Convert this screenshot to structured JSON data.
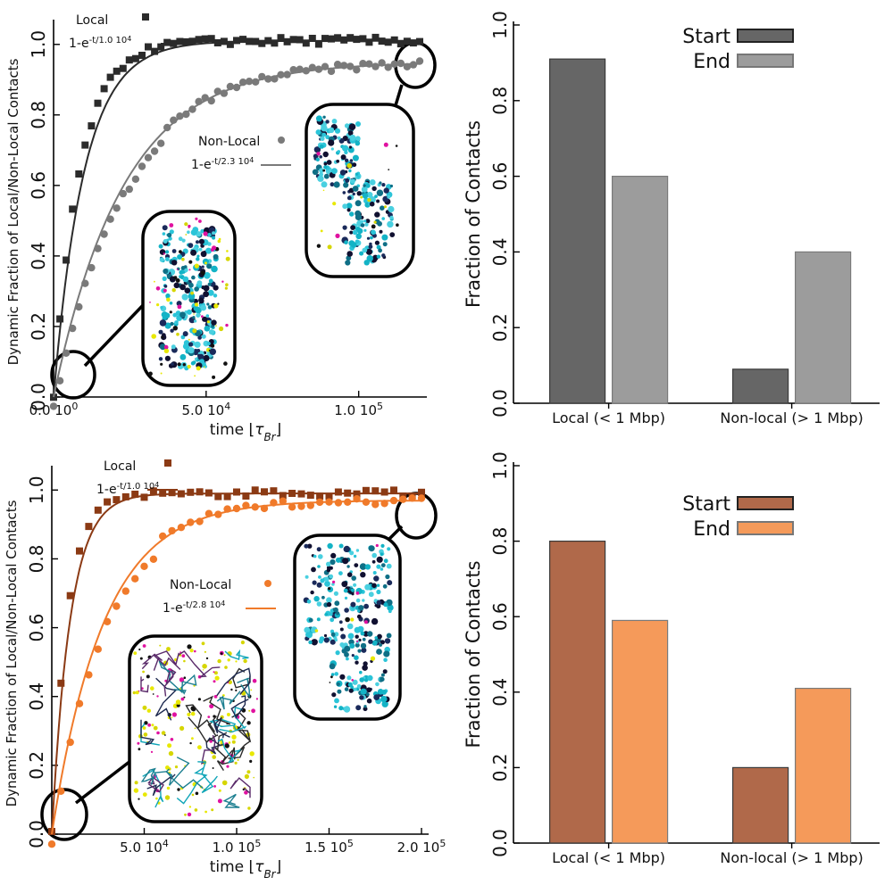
{
  "chart_data": [
    {
      "id": "top-left",
      "type": "scatter",
      "ylabel": "Dynamic Fraction of Local/Non-Local Contacts",
      "xlabel_prefix": "time ",
      "xlabel_unit": "τ",
      "xlabel_sub": "Br",
      "xlim": [
        0,
        120000
      ],
      "ylim": [
        0,
        1.05
      ],
      "yticks": [
        "0.0",
        "0.2",
        "0.4",
        "0.6",
        "0.8",
        "1.0"
      ],
      "xticks": [
        {
          "value": 0,
          "label": "0.0 10",
          "sup": "0"
        },
        {
          "value": 50000,
          "label": "5.0 10",
          "sup": "4"
        },
        {
          "value": 100000,
          "label": "1.0 10",
          "sup": "5"
        }
      ],
      "series": [
        {
          "name": "Local",
          "marker": "square",
          "color": "#2b2b2b",
          "fit_tau": 10000,
          "fit_label": "1-e",
          "fit_exp": "-t/1.0 10",
          "fit_exp_sup": "4"
        },
        {
          "name": "Non-Local",
          "marker": "circle",
          "color": "#7a7a7a",
          "fit_tau": 23000,
          "fit_label": "1-e",
          "fit_exp": "-t/2.3 10",
          "fit_exp_sup": "4"
        }
      ],
      "n_points": 58,
      "x_max": 120000,
      "local_plateau": 1.01,
      "nonlocal_plateau": 0.95
    },
    {
      "id": "top-right",
      "type": "bar",
      "ylabel": "Fraction of Contacts",
      "categories": [
        "Local (< 1 Mbp)",
        "Non-local (> 1 Mbp)"
      ],
      "ylim": [
        0,
        1.0
      ],
      "yticks": [
        "0.0",
        "0.2",
        "0.4",
        "0.6",
        "0.8",
        "1.0"
      ],
      "series": [
        {
          "name": "Start",
          "color": "#666666",
          "values": [
            0.91,
            0.09
          ]
        },
        {
          "name": "End",
          "color": "#9c9c9c",
          "values": [
            0.6,
            0.4
          ]
        }
      ]
    },
    {
      "id": "bottom-left",
      "type": "scatter",
      "ylabel": "Dynamic Fraction of Local/Non-Local Contacts",
      "xlabel_prefix": "time ",
      "xlabel_unit": "τ",
      "xlabel_sub": "Br",
      "xlim": [
        0,
        200000
      ],
      "ylim": [
        0,
        1.05
      ],
      "yticks": [
        "0.0",
        "0.2",
        "0.4",
        "0.6",
        "0.8",
        "1.0"
      ],
      "xticks": [
        {
          "value": 50000,
          "label": "5.0 10",
          "sup": "4"
        },
        {
          "value": 100000,
          "label": "1.0 10",
          "sup": "5"
        },
        {
          "value": 150000,
          "label": "1.5 10",
          "sup": "5"
        },
        {
          "value": 200000,
          "label": "2.0 10",
          "sup": "5"
        }
      ],
      "series": [
        {
          "name": "Local",
          "marker": "square",
          "color": "#8b3a14",
          "fit_tau": 10000,
          "fit_label": "1-e",
          "fit_exp": "-t/1.0 10",
          "fit_exp_sup": "4"
        },
        {
          "name": "Non-Local",
          "marker": "circle",
          "color": "#f07a2a",
          "fit_tau": 28000,
          "fit_label": "1-e",
          "fit_exp": "-t/2.8 10",
          "fit_exp_sup": "4"
        }
      ],
      "n_points": 40,
      "x_max": 200000,
      "local_plateau": 0.99,
      "nonlocal_plateau": 0.97
    },
    {
      "id": "bottom-right",
      "type": "bar",
      "ylabel": "Fraction of Contacts",
      "categories": [
        "Local (< 1 Mbp)",
        "Non-local (> 1 Mbp)"
      ],
      "ylim": [
        0,
        1.0
      ],
      "yticks": [
        "0.0",
        "0.2",
        "0.4",
        "0.6",
        "0.8",
        "1.0"
      ],
      "series": [
        {
          "name": "Start",
          "color": "#b0694a",
          "values": [
            0.8,
            0.2
          ]
        },
        {
          "name": "End",
          "color": "#f59a5a",
          "values": [
            0.59,
            0.41
          ]
        }
      ]
    }
  ]
}
